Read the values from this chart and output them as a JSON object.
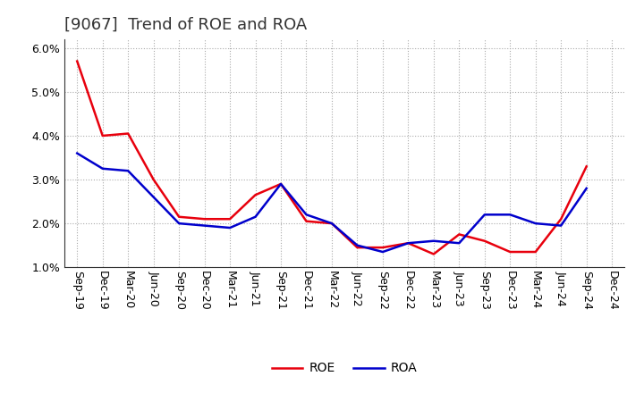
{
  "title": "[9067]  Trend of ROE and ROA",
  "x_labels": [
    "Sep-19",
    "Dec-19",
    "Mar-20",
    "Jun-20",
    "Sep-20",
    "Dec-20",
    "Mar-21",
    "Jun-21",
    "Sep-21",
    "Dec-21",
    "Mar-22",
    "Jun-22",
    "Sep-22",
    "Dec-22",
    "Mar-23",
    "Jun-23",
    "Sep-23",
    "Dec-23",
    "Mar-24",
    "Jun-24",
    "Sep-24",
    "Dec-24"
  ],
  "roe": [
    5.7,
    4.0,
    4.05,
    3.0,
    2.15,
    2.1,
    2.1,
    2.65,
    2.9,
    2.05,
    2.0,
    1.45,
    1.45,
    1.55,
    1.3,
    1.75,
    1.6,
    1.35,
    1.35,
    2.1,
    3.3,
    null
  ],
  "roa": [
    3.6,
    3.25,
    3.2,
    2.6,
    2.0,
    1.95,
    1.9,
    2.15,
    2.9,
    2.2,
    2.0,
    1.5,
    1.35,
    1.55,
    1.6,
    1.55,
    2.2,
    2.2,
    2.0,
    1.95,
    2.8,
    null
  ],
  "roe_color": "#e8000d",
  "roa_color": "#0000cc",
  "ylim": [
    1.0,
    6.2
  ],
  "yticks": [
    1.0,
    2.0,
    3.0,
    4.0,
    5.0,
    6.0
  ],
  "background_color": "#ffffff",
  "grid_color": "#aaaaaa",
  "title_fontsize": 13,
  "legend_fontsize": 10,
  "tick_fontsize": 9
}
